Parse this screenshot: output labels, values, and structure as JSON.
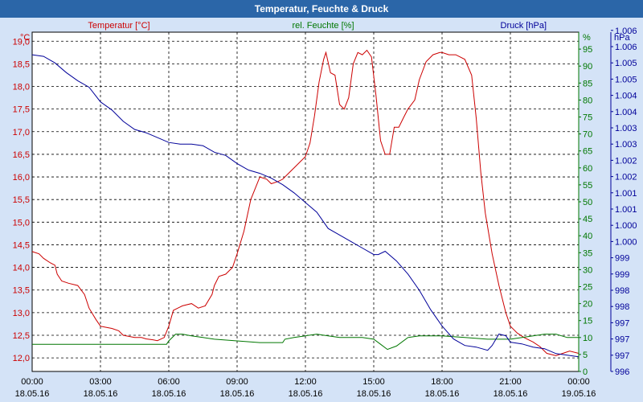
{
  "window": {
    "title": "Temperatur, Feuchte & Druck"
  },
  "colors": {
    "temperature": "#cc0000",
    "humidity": "#007700",
    "pressure": "#000099",
    "titlebar": "#2b66a8",
    "background": "#d4e3f7"
  },
  "chart_data": {
    "type": "line",
    "title": "Temperatur, Feuchte & Druck",
    "grid": true,
    "x_tick_labels": [
      [
        "00:00",
        "18.05.16"
      ],
      [
        "03:00",
        "18.05.16"
      ],
      [
        "06:00",
        "18.05.16"
      ],
      [
        "09:00",
        "18.05.16"
      ],
      [
        "12:00",
        "18.05.16"
      ],
      [
        "15:00",
        "18.05.16"
      ],
      [
        "18:00",
        "18.05.16"
      ],
      [
        "21:00",
        "18.05.16"
      ],
      [
        "00:00",
        "19.05.16"
      ]
    ],
    "xlim_hours": [
      0,
      24
    ],
    "axes": {
      "temperature": {
        "label": "Temperatur [°C]",
        "unit": "°C",
        "ylim": [
          11.7,
          19.2
        ],
        "ticks": [
          "12,0",
          "12,5",
          "13,0",
          "13,5",
          "14,0",
          "14,5",
          "15,0",
          "15,5",
          "16,0",
          "16,5",
          "17,0",
          "17,5",
          "18,0",
          "18,5",
          "19,0"
        ],
        "tick_values": [
          12.0,
          12.5,
          13.0,
          13.5,
          14.0,
          14.5,
          15.0,
          15.5,
          16.0,
          16.5,
          17.0,
          17.5,
          18.0,
          18.5,
          19.0
        ]
      },
      "humidity": {
        "label": "rel. Feuchte [%]",
        "unit": "%",
        "ylim": [
          0,
          100
        ],
        "ticks": [
          "0",
          "5",
          "10",
          "15",
          "20",
          "25",
          "30",
          "35",
          "40",
          "45",
          "50",
          "55",
          "60",
          "65",
          "70",
          "75",
          "80",
          "85",
          "90",
          "95"
        ],
        "tick_values": [
          0,
          5,
          10,
          15,
          20,
          25,
          30,
          35,
          40,
          45,
          50,
          55,
          60,
          65,
          70,
          75,
          80,
          85,
          90,
          95
        ]
      },
      "pressure": {
        "label": "Druck [hPa]",
        "unit": "hPa",
        "ticks": [
          "996",
          "997",
          "997",
          "997",
          "998",
          "998",
          "999",
          "999",
          "1.000",
          "1.000",
          "1.001",
          "1.001",
          "1.002",
          "1.002",
          "1.003",
          "1.003",
          "1.004",
          "1.004",
          "1.005",
          "1.005",
          "1.006",
          "1.006"
        ],
        "tick_fractions": [
          0,
          0.05,
          0.1,
          0.15,
          0.2,
          0.25,
          0.3,
          0.35,
          0.4,
          0.45,
          0.5,
          0.55,
          0.6,
          0.65,
          0.7,
          0.75,
          0.8,
          0.85,
          0.9,
          0.95,
          1.0,
          1.05
        ]
      }
    },
    "series": [
      {
        "name": "Temperatur",
        "axis": "temperature",
        "x": [
          0,
          0.3,
          0.5,
          0.8,
          1.0,
          1.1,
          1.3,
          1.6,
          2.0,
          2.3,
          2.5,
          2.8,
          3.0,
          3.2,
          3.5,
          3.8,
          4.0,
          4.2,
          4.5,
          4.8,
          5.0,
          5.3,
          5.5,
          5.8,
          6.0,
          6.2,
          6.4,
          6.6,
          7.0,
          7.3,
          7.6,
          7.9,
          8.0,
          8.2,
          8.5,
          8.8,
          9.0,
          9.3,
          9.6,
          10.0,
          10.3,
          10.5,
          10.8,
          11.0,
          11.3,
          11.6,
          12.0,
          12.2,
          12.4,
          12.6,
          12.8,
          12.9,
          13.1,
          13.3,
          13.5,
          13.7,
          13.9,
          14.1,
          14.3,
          14.5,
          14.7,
          14.9,
          15.1,
          15.3,
          15.5,
          15.7,
          15.9,
          16.1,
          16.3,
          16.5,
          16.8,
          17.0,
          17.3,
          17.6,
          17.9,
          18.0,
          18.3,
          18.6,
          19.0,
          19.3,
          19.5,
          19.7,
          19.9,
          20.2,
          20.5,
          20.8,
          21.0,
          21.3,
          21.6,
          22.0,
          22.3,
          22.6,
          23.0,
          23.3,
          23.6,
          24.0
        ],
        "y": [
          14.35,
          14.3,
          14.2,
          14.1,
          14.05,
          13.85,
          13.7,
          13.65,
          13.6,
          13.4,
          13.1,
          12.85,
          12.7,
          12.68,
          12.65,
          12.6,
          12.5,
          12.48,
          12.45,
          12.45,
          12.42,
          12.4,
          12.38,
          12.45,
          12.7,
          13.05,
          13.1,
          13.15,
          13.2,
          13.1,
          13.15,
          13.4,
          13.6,
          13.8,
          13.85,
          14.0,
          14.3,
          14.8,
          15.5,
          16.0,
          15.95,
          15.85,
          15.9,
          15.95,
          16.1,
          16.25,
          16.45,
          16.75,
          17.35,
          18.1,
          18.6,
          18.75,
          18.3,
          18.25,
          17.6,
          17.5,
          17.75,
          18.5,
          18.75,
          18.7,
          18.8,
          18.65,
          17.8,
          16.8,
          16.5,
          16.5,
          17.1,
          17.1,
          17.3,
          17.5,
          17.7,
          18.15,
          18.55,
          18.7,
          18.75,
          18.75,
          18.7,
          18.7,
          18.6,
          18.25,
          17.3,
          16.1,
          15.2,
          14.3,
          13.6,
          13.0,
          12.7,
          12.55,
          12.45,
          12.35,
          12.25,
          12.1,
          12.05,
          12.1,
          12.15,
          12.1
        ],
        "color": "#cc0000"
      },
      {
        "name": "rel. Feuchte",
        "axis": "humidity",
        "x": [
          0,
          1,
          2,
          3,
          4,
          5,
          5.9,
          6.0,
          6.3,
          6.6,
          7.0,
          7.5,
          8.0,
          9.0,
          10.0,
          11.0,
          11.1,
          11.5,
          12.0,
          12.5,
          13.0,
          13.5,
          14.0,
          14.5,
          15.0,
          15.3,
          15.6,
          16.0,
          16.5,
          17.0,
          18.0,
          19.0,
          20.0,
          21.0,
          22.0,
          22.5,
          23.0,
          23.5,
          24.0
        ],
        "y": [
          8,
          8,
          8,
          8,
          8,
          8,
          8,
          9,
          11,
          11,
          10.5,
          10,
          9.5,
          9,
          8.5,
          8.5,
          9.5,
          10,
          10.5,
          11,
          10.5,
          10,
          10,
          10,
          9.5,
          8,
          6.5,
          7.5,
          10,
          10.5,
          10.5,
          10,
          9.5,
          9.5,
          10.5,
          11,
          11,
          10,
          10
        ],
        "color": "#007700"
      },
      {
        "name": "Druck",
        "axis": "pressure",
        "x": [
          0,
          0.5,
          1.0,
          1.5,
          2.0,
          2.5,
          3.0,
          3.5,
          4.0,
          4.5,
          5.0,
          5.5,
          6.0,
          6.5,
          7.0,
          7.5,
          8.0,
          8.5,
          9.0,
          9.5,
          10.0,
          10.5,
          11.0,
          11.5,
          12.0,
          12.5,
          13.0,
          13.5,
          14.0,
          14.5,
          15.0,
          15.2,
          15.5,
          16.0,
          16.5,
          17.0,
          17.5,
          18.0,
          18.5,
          19.0,
          19.5,
          20.0,
          20.2,
          20.5,
          20.8,
          21.0,
          21.5,
          22.0,
          22.5,
          23.0,
          23.5,
          24.0
        ],
        "y": [
          0.975,
          0.97,
          0.95,
          0.92,
          0.895,
          0.875,
          0.83,
          0.805,
          0.77,
          0.745,
          0.735,
          0.72,
          0.705,
          0.7,
          0.7,
          0.695,
          0.675,
          0.665,
          0.64,
          0.62,
          0.61,
          0.595,
          0.575,
          0.55,
          0.52,
          0.49,
          0.44,
          0.42,
          0.4,
          0.38,
          0.36,
          0.36,
          0.37,
          0.34,
          0.3,
          0.25,
          0.19,
          0.14,
          0.1,
          0.08,
          0.075,
          0.065,
          0.08,
          0.115,
          0.11,
          0.09,
          0.085,
          0.075,
          0.07,
          0.055,
          0.05,
          0.045
        ],
        "color": "#000099"
      }
    ]
  }
}
